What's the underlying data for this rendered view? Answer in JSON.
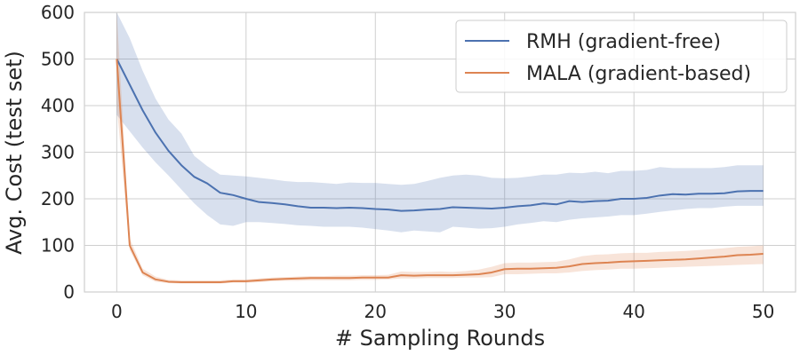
{
  "chart_data": {
    "type": "line",
    "title": "",
    "xlabel": "# Sampling Rounds",
    "ylabel": "Avg. Cost (test set)",
    "xlim": [
      -2.5,
      52.5
    ],
    "ylim": [
      0,
      600
    ],
    "xticks": [
      0,
      10,
      20,
      30,
      40,
      50
    ],
    "yticks": [
      0,
      100,
      200,
      300,
      400,
      500,
      600
    ],
    "grid": true,
    "legend_position": "top-right",
    "x": [
      0,
      1,
      2,
      3,
      4,
      5,
      6,
      7,
      8,
      9,
      10,
      11,
      12,
      13,
      14,
      15,
      16,
      17,
      18,
      19,
      20,
      21,
      22,
      23,
      24,
      25,
      26,
      27,
      28,
      29,
      30,
      31,
      32,
      33,
      34,
      35,
      36,
      37,
      38,
      39,
      40,
      41,
      42,
      43,
      44,
      45,
      46,
      47,
      48,
      49,
      50
    ],
    "series": [
      {
        "name": "RMH (gradient-free)",
        "color": "#4c72b0",
        "values": [
          500,
          445,
          390,
          342,
          303,
          272,
          247,
          233,
          213,
          208,
          200,
          193,
          191,
          188,
          184,
          181,
          181,
          180,
          181,
          180,
          178,
          177,
          174,
          175,
          177,
          178,
          182,
          181,
          180,
          179,
          181,
          184,
          186,
          190,
          188,
          195,
          193,
          195,
          196,
          200,
          200,
          202,
          207,
          210,
          209,
          211,
          211,
          212,
          216,
          217,
          217
        ],
        "lower": [
          380,
          345,
          310,
          278,
          250,
          220,
          190,
          165,
          145,
          142,
          150,
          150,
          148,
          146,
          143,
          142,
          140,
          140,
          140,
          138,
          135,
          132,
          128,
          132,
          130,
          128,
          140,
          138,
          136,
          137,
          140,
          145,
          148,
          152,
          150,
          155,
          158,
          160,
          162,
          165,
          165,
          168,
          172,
          175,
          178,
          180,
          180,
          183,
          185,
          185,
          185
        ],
        "upper": [
          600,
          545,
          475,
          415,
          370,
          340,
          292,
          270,
          252,
          250,
          248,
          245,
          242,
          238,
          236,
          236,
          234,
          232,
          235,
          234,
          234,
          232,
          230,
          232,
          238,
          245,
          250,
          252,
          250,
          245,
          244,
          245,
          248,
          252,
          252,
          256,
          255,
          258,
          255,
          260,
          260,
          262,
          268,
          266,
          266,
          266,
          266,
          268,
          272,
          272,
          272
        ]
      },
      {
        "name": "MALA (gradient-based)",
        "color": "#dd8452",
        "values": [
          500,
          100,
          42,
          27,
          22,
          21,
          21,
          21,
          21,
          23,
          23,
          25,
          27,
          28,
          29,
          30,
          30,
          30,
          30,
          31,
          31,
          31,
          36,
          35,
          36,
          36,
          36,
          37,
          38,
          42,
          49,
          50,
          50,
          51,
          52,
          55,
          60,
          62,
          63,
          65,
          66,
          67,
          68,
          69,
          70,
          72,
          74,
          76,
          79,
          80,
          82
        ],
        "lower": [
          400,
          90,
          36,
          22,
          19,
          18,
          18,
          18,
          18,
          20,
          20,
          21,
          23,
          24,
          24,
          25,
          25,
          25,
          25,
          26,
          26,
          27,
          29,
          29,
          30,
          30,
          30,
          31,
          31,
          32,
          38,
          38,
          39,
          40,
          40,
          42,
          45,
          47,
          48,
          50,
          50,
          51,
          52,
          53,
          54,
          55,
          56,
          57,
          58,
          59,
          60
        ],
        "upper": [
          600,
          115,
          50,
          33,
          26,
          25,
          25,
          25,
          25,
          27,
          27,
          29,
          31,
          32,
          33,
          34,
          34,
          35,
          35,
          36,
          36,
          37,
          44,
          43,
          43,
          44,
          43,
          45,
          48,
          54,
          62,
          63,
          63,
          64,
          65,
          70,
          77,
          80,
          81,
          83,
          84,
          84,
          86,
          87,
          88,
          90,
          92,
          94,
          97,
          98,
          100
        ]
      }
    ]
  }
}
